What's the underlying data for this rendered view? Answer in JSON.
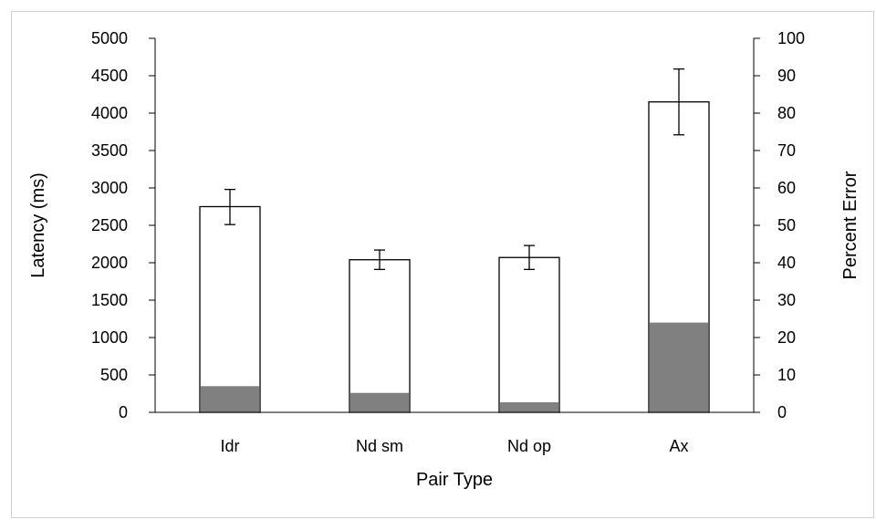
{
  "chart_data": {
    "type": "bar",
    "categories": [
      "Idr",
      "Nd sm",
      "Nd op",
      "Ax"
    ],
    "xlabel": "Pair Type",
    "ylabel": "Latency (ms)",
    "y2label": "Percent Error",
    "ylim": [
      0,
      5000
    ],
    "y2lim": [
      0,
      100
    ],
    "yticks": [
      "0",
      "500",
      "1000",
      "1500",
      "2000",
      "2500",
      "3000",
      "3500",
      "4000",
      "4500",
      "5000"
    ],
    "y2ticks": [
      "0",
      "10",
      "20",
      "30",
      "40",
      "50",
      "60",
      "70",
      "80",
      "90",
      "100"
    ],
    "grid": false,
    "series": [
      {
        "axis": "left",
        "color": "#ffffff",
        "edge": "#000000",
        "values": [
          2750,
          2040,
          2070,
          4150
        ],
        "error_low": [
          2510,
          1910,
          1910,
          3710
        ],
        "error_high": [
          2980,
          2170,
          2230,
          4590
        ]
      },
      {
        "axis": "right",
        "color": "#808080",
        "values": [
          7,
          5.2,
          2.7,
          24
        ]
      }
    ]
  }
}
